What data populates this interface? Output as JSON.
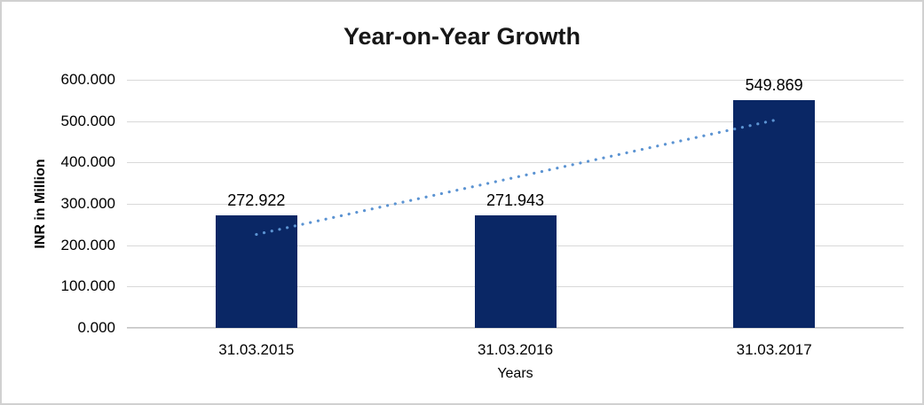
{
  "chart_data": {
    "type": "bar",
    "title": "Year-on-Year Growth",
    "xlabel": "Years",
    "ylabel": "INR in Million",
    "categories": [
      "31.03.2015",
      "31.03.2016",
      "31.03.2017"
    ],
    "values": [
      272.922,
      271.943,
      549.869
    ],
    "value_labels": [
      "272.922",
      "271.943",
      "549.869"
    ],
    "ylim": [
      0,
      600
    ],
    "ytick_values": [
      0,
      100,
      200,
      300,
      400,
      500,
      600
    ],
    "ytick_labels": [
      "0.000",
      "100.000",
      "200.000",
      "300.000",
      "400.000",
      "500.000",
      "600.000"
    ],
    "grid": true,
    "legend": "none",
    "trendline": {
      "type": "linear",
      "style": "dotted",
      "start_value": 226,
      "end_value": 502
    },
    "colors": {
      "bar": "#0a2765",
      "trendline": "#5b93d2",
      "gridline": "#d9d9d9",
      "axis_line": "#c6c6c6",
      "text": "#000000",
      "frame_border": "#d1d1d1"
    }
  }
}
